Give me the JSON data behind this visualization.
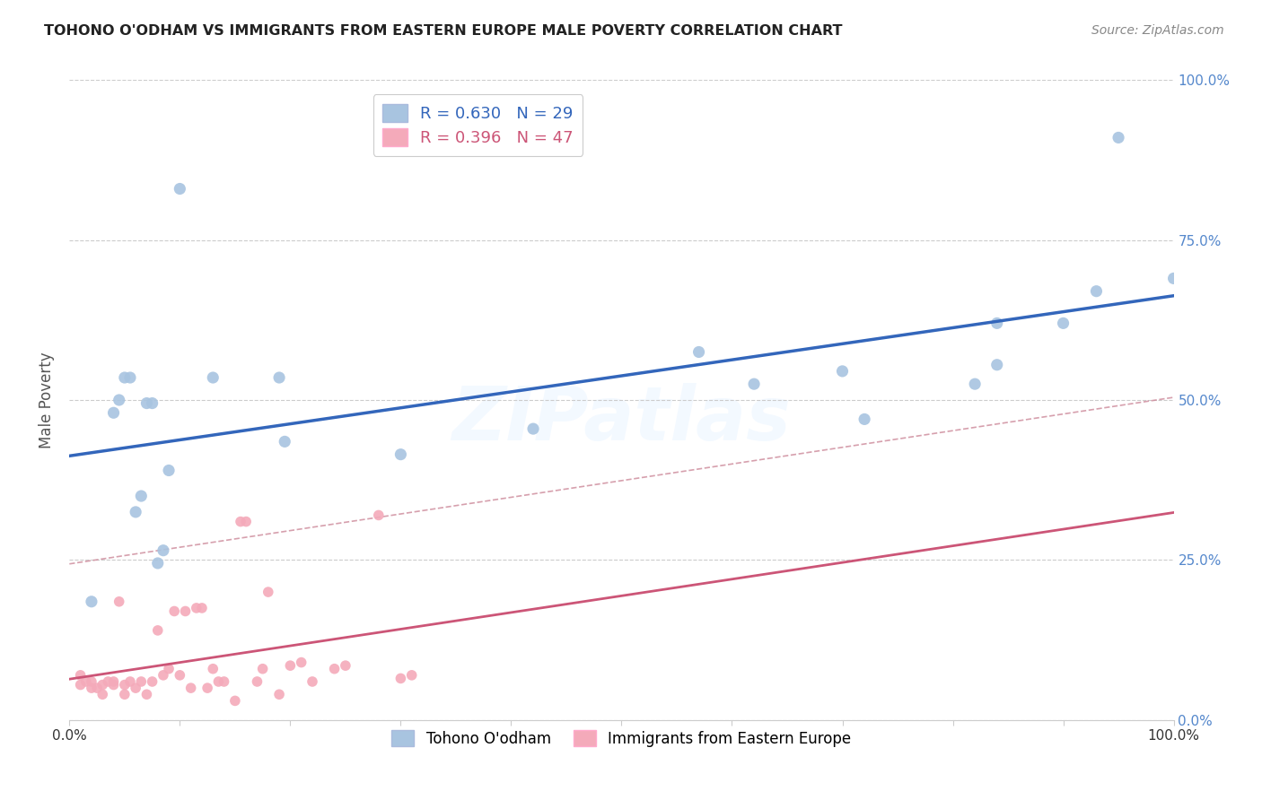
{
  "title": "TOHONO O'ODHAM VS IMMIGRANTS FROM EASTERN EUROPE MALE POVERTY CORRELATION CHART",
  "source": "Source: ZipAtlas.com",
  "ylabel": "Male Poverty",
  "blue_R": 0.63,
  "blue_N": 29,
  "pink_R": 0.396,
  "pink_N": 47,
  "blue_color": "#A8C4E0",
  "pink_color": "#F4AABA",
  "blue_line_color": "#3366BB",
  "pink_line_color": "#CC5577",
  "pink_dash_color": "#CC8899",
  "background_color": "#FFFFFF",
  "grid_color": "#CCCCCC",
  "right_tick_color": "#5588CC",
  "legend_text_blue": "#3366BB",
  "legend_text_pink": "#CC5577",
  "blue_x": [
    0.02,
    0.04,
    0.045,
    0.05,
    0.055,
    0.06,
    0.065,
    0.07,
    0.075,
    0.08,
    0.085,
    0.09,
    0.1,
    0.13,
    0.19,
    0.195,
    0.3,
    0.42,
    0.57,
    0.62,
    0.7,
    0.72,
    0.82,
    0.84,
    0.84,
    0.9,
    0.93,
    0.95,
    1.0
  ],
  "blue_y": [
    0.185,
    0.48,
    0.5,
    0.535,
    0.535,
    0.325,
    0.35,
    0.495,
    0.495,
    0.245,
    0.265,
    0.39,
    0.83,
    0.535,
    0.535,
    0.435,
    0.415,
    0.455,
    0.575,
    0.525,
    0.545,
    0.47,
    0.525,
    0.555,
    0.62,
    0.62,
    0.67,
    0.91,
    0.69
  ],
  "pink_x": [
    0.01,
    0.01,
    0.015,
    0.02,
    0.02,
    0.025,
    0.03,
    0.03,
    0.035,
    0.04,
    0.04,
    0.045,
    0.05,
    0.05,
    0.055,
    0.06,
    0.065,
    0.07,
    0.075,
    0.08,
    0.085,
    0.09,
    0.095,
    0.1,
    0.105,
    0.11,
    0.115,
    0.12,
    0.125,
    0.13,
    0.135,
    0.14,
    0.15,
    0.155,
    0.16,
    0.17,
    0.175,
    0.18,
    0.19,
    0.2,
    0.21,
    0.22,
    0.24,
    0.25,
    0.28,
    0.3,
    0.31
  ],
  "pink_y": [
    0.055,
    0.07,
    0.06,
    0.05,
    0.06,
    0.05,
    0.04,
    0.055,
    0.06,
    0.06,
    0.055,
    0.185,
    0.04,
    0.055,
    0.06,
    0.05,
    0.06,
    0.04,
    0.06,
    0.14,
    0.07,
    0.08,
    0.17,
    0.07,
    0.17,
    0.05,
    0.175,
    0.175,
    0.05,
    0.08,
    0.06,
    0.06,
    0.03,
    0.31,
    0.31,
    0.06,
    0.08,
    0.2,
    0.04,
    0.085,
    0.09,
    0.06,
    0.08,
    0.085,
    0.32,
    0.065,
    0.07
  ],
  "xlim": [
    0.0,
    1.0
  ],
  "ylim": [
    0.0,
    1.0
  ],
  "ytick_vals": [
    0.0,
    0.25,
    0.5,
    0.75,
    1.0
  ],
  "ytick_labels_right": [
    "0.0%",
    "25.0%",
    "50.0%",
    "75.0%",
    "100.0%"
  ]
}
